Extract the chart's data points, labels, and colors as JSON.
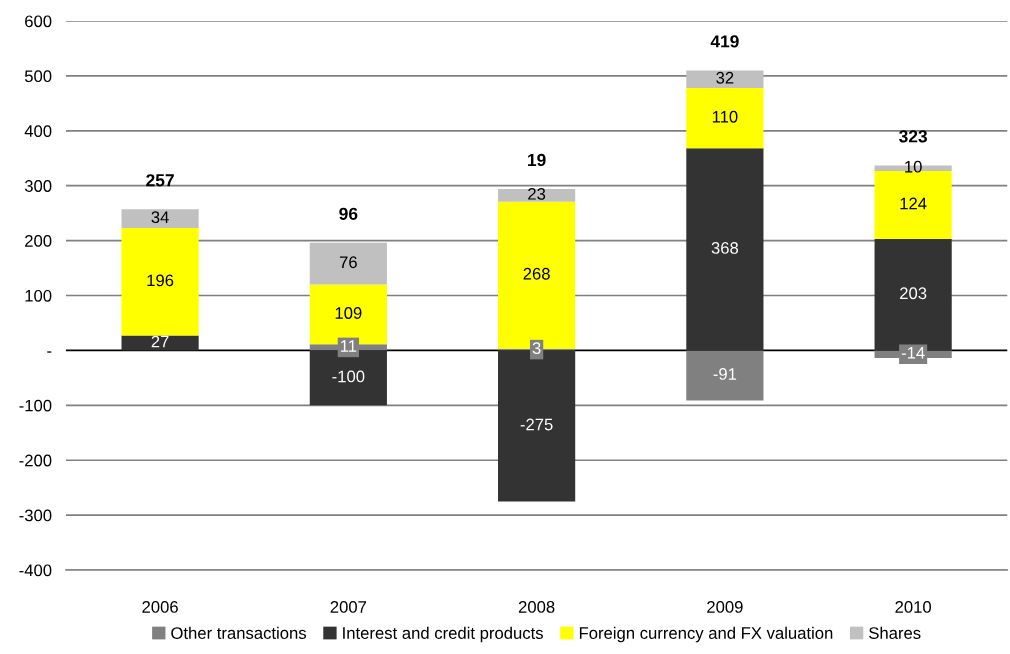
{
  "chart_data": {
    "type": "bar",
    "stacked": true,
    "categories": [
      "2006",
      "2007",
      "2008",
      "2009",
      "2010"
    ],
    "series": [
      {
        "name": "Other transactions",
        "color": "#808080",
        "values": [
          null,
          11,
          3,
          -91,
          -14
        ]
      },
      {
        "name": "Interest and credit products",
        "color": "#333333",
        "values": [
          27,
          -100,
          -275,
          368,
          203
        ]
      },
      {
        "name": "Foreign currency and FX valuation",
        "color": "#ffff00",
        "values": [
          196,
          109,
          268,
          110,
          124
        ]
      },
      {
        "name": "Shares",
        "color": "#c0c0c0",
        "values": [
          34,
          76,
          23,
          32,
          10
        ]
      }
    ],
    "ylim": [
      -400,
      600
    ],
    "yticks": [
      -400,
      -300,
      -200,
      -100,
      {
        "value": 0,
        "label": "-"
      },
      100,
      200,
      300,
      400,
      500,
      600
    ],
    "grid": "y",
    "legend": "bottom",
    "data_labels": true,
    "totals": [
      "257",
      "96",
      "19",
      "419",
      "323"
    ]
  }
}
